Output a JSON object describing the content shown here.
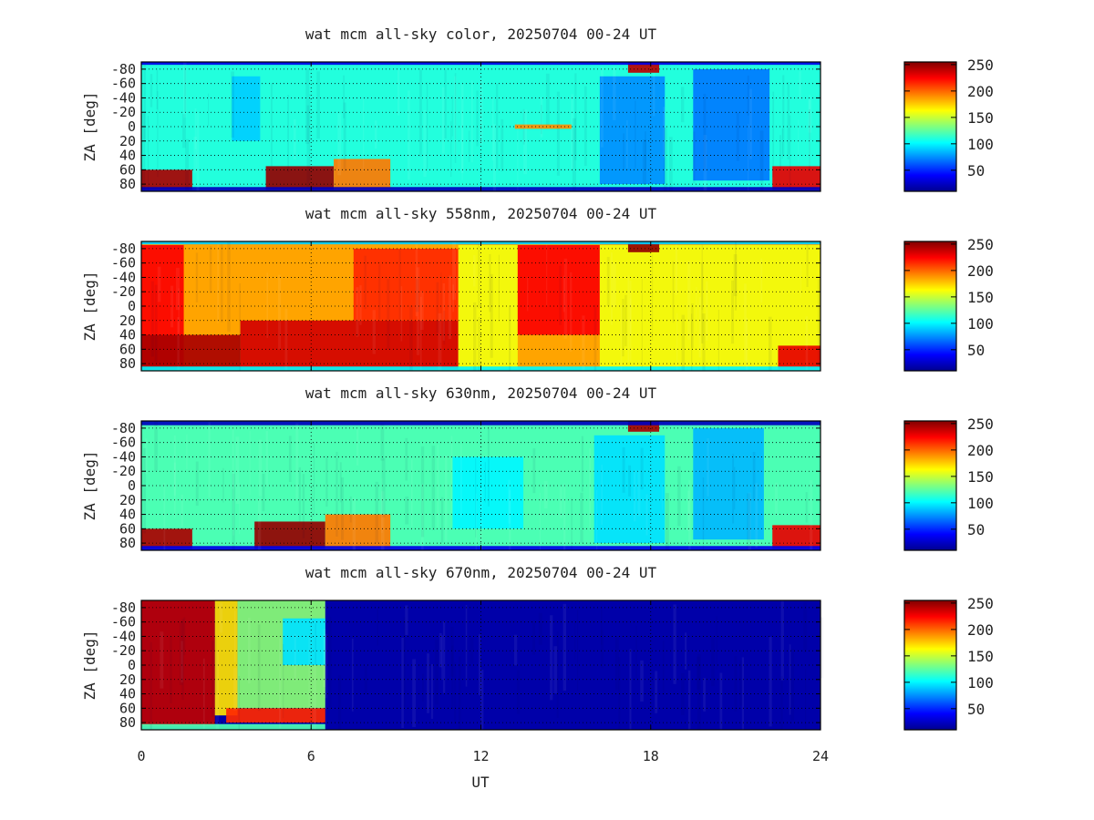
{
  "chart_data": [
    {
      "type": "heatmap",
      "title": "wat mcm all-sky color, 20250704 00-24 UT",
      "xlabel": "",
      "ylabel": "ZA [deg]",
      "x_ticks": [],
      "y_ticks": [
        "-80",
        "-60",
        "-40",
        "-20",
        "0",
        "20",
        "40",
        "60",
        "80"
      ],
      "xlim": [
        0,
        24
      ],
      "ylim": [
        -90,
        90
      ],
      "colorbar": {
        "ticks": [
          "250",
          "200",
          "150",
          "100",
          "50"
        ],
        "range": [
          10,
          255
        ]
      },
      "grid": true,
      "base_value": 110,
      "features": [
        {
          "t": [
            0,
            1.8
          ],
          "za": [
            60,
            88
          ],
          "value": 245
        },
        {
          "t": [
            4.4,
            6.8
          ],
          "za": [
            55,
            88
          ],
          "value": 250
        },
        {
          "t": [
            6.8,
            8.8
          ],
          "za": [
            45,
            88
          ],
          "value": 195
        },
        {
          "t": [
            3.2,
            4.2
          ],
          "za": [
            -70,
            20
          ],
          "value": 90
        },
        {
          "t": [
            16.2,
            18.5
          ],
          "za": [
            -70,
            80
          ],
          "value": 75
        },
        {
          "t": [
            19.5,
            22.2
          ],
          "za": [
            -80,
            75
          ],
          "value": 70
        },
        {
          "t": [
            22.3,
            24
          ],
          "za": [
            55,
            88
          ],
          "value": 230
        },
        {
          "t": [
            17.2,
            18.3
          ],
          "za": [
            -90,
            -75
          ],
          "value": 240
        },
        {
          "t": [
            13.2,
            15.2
          ],
          "za": [
            -3,
            3
          ],
          "value": 190
        },
        {
          "t": [
            0,
            24
          ],
          "za": [
            -90,
            -86
          ],
          "value": 35
        },
        {
          "t": [
            0,
            24
          ],
          "za": [
            84,
            90
          ],
          "value": 25
        }
      ]
    },
    {
      "type": "heatmap",
      "title": "wat mcm all-sky 558nm, 20250704 00-24 UT",
      "xlabel": "",
      "ylabel": "ZA [deg]",
      "x_ticks": [],
      "y_ticks": [
        "-80",
        "-60",
        "-40",
        "-20",
        "0",
        "20",
        "40",
        "60",
        "80"
      ],
      "xlim": [
        0,
        24
      ],
      "ylim": [
        -90,
        90
      ],
      "colorbar": {
        "ticks": [
          "250",
          "200",
          "150",
          "100",
          "50"
        ],
        "range": [
          10,
          255
        ]
      },
      "grid": true,
      "base_value": 185,
      "features": [
        {
          "t": [
            0,
            1.5
          ],
          "za": [
            -85,
            88
          ],
          "value": 225
        },
        {
          "t": [
            0,
            3.5
          ],
          "za": [
            40,
            88
          ],
          "value": 245
        },
        {
          "t": [
            3.5,
            11.2
          ],
          "za": [
            20,
            88
          ],
          "value": 235
        },
        {
          "t": [
            7.5,
            11.2
          ],
          "za": [
            -80,
            20
          ],
          "value": 215
        },
        {
          "t": [
            11.2,
            13.3
          ],
          "za": [
            -85,
            88
          ],
          "value": 160
        },
        {
          "t": [
            13.3,
            16.2
          ],
          "za": [
            -85,
            40
          ],
          "value": 225
        },
        {
          "t": [
            16.2,
            24
          ],
          "za": [
            -85,
            88
          ],
          "value": 160
        },
        {
          "t": [
            22.5,
            24
          ],
          "za": [
            55,
            88
          ],
          "value": 230
        },
        {
          "t": [
            17.2,
            18.3
          ],
          "za": [
            -90,
            -75
          ],
          "value": 250
        },
        {
          "t": [
            0,
            24
          ],
          "za": [
            -90,
            -86
          ],
          "value": 90
        },
        {
          "t": [
            0,
            24
          ],
          "za": [
            84,
            90
          ],
          "value": 100
        }
      ]
    },
    {
      "type": "heatmap",
      "title": "wat mcm all-sky 630nm, 20250704 00-24 UT",
      "xlabel": "",
      "ylabel": "ZA [deg]",
      "x_ticks": [],
      "y_ticks": [
        "-80",
        "-60",
        "-40",
        "-20",
        "0",
        "20",
        "40",
        "60",
        "80"
      ],
      "xlim": [
        0,
        24
      ],
      "ylim": [
        -90,
        90
      ],
      "colorbar": {
        "ticks": [
          "250",
          "200",
          "150",
          "100",
          "50"
        ],
        "range": [
          10,
          255
        ]
      },
      "grid": true,
      "base_value": 120,
      "features": [
        {
          "t": [
            0,
            1.8
          ],
          "za": [
            60,
            88
          ],
          "value": 245
        },
        {
          "t": [
            4.0,
            6.5
          ],
          "za": [
            50,
            88
          ],
          "value": 250
        },
        {
          "t": [
            6.5,
            8.8
          ],
          "za": [
            40,
            88
          ],
          "value": 195
        },
        {
          "t": [
            11.0,
            13.5
          ],
          "za": [
            -40,
            60
          ],
          "value": 100
        },
        {
          "t": [
            16.0,
            18.5
          ],
          "za": [
            -70,
            80
          ],
          "value": 95
        },
        {
          "t": [
            19.5,
            22.0
          ],
          "za": [
            -80,
            75
          ],
          "value": 85
        },
        {
          "t": [
            22.3,
            24
          ],
          "za": [
            55,
            88
          ],
          "value": 230
        },
        {
          "t": [
            17.2,
            18.3
          ],
          "za": [
            -90,
            -75
          ],
          "value": 245
        },
        {
          "t": [
            0,
            24
          ],
          "za": [
            -90,
            -84
          ],
          "value": 25
        },
        {
          "t": [
            0,
            24
          ],
          "za": [
            84,
            90
          ],
          "value": 35
        }
      ]
    },
    {
      "type": "heatmap",
      "title": "wat mcm all-sky 670nm, 20250704 00-24 UT",
      "xlabel": "UT",
      "ylabel": "ZA [deg]",
      "x_ticks": [
        "0",
        "6",
        "12",
        "18",
        "24"
      ],
      "y_ticks": [
        "-80",
        "-60",
        "-40",
        "-20",
        "0",
        "20",
        "40",
        "60",
        "80"
      ],
      "xlim": [
        0,
        24
      ],
      "ylim": [
        -90,
        90
      ],
      "colorbar": {
        "ticks": [
          "250",
          "200",
          "150",
          "100",
          "50"
        ],
        "range": [
          10,
          255
        ]
      },
      "grid": true,
      "base_value": 20,
      "features": [
        {
          "t": [
            0,
            2.6
          ],
          "za": [
            -90,
            85
          ],
          "value": 240
        },
        {
          "t": [
            2.6,
            3.4
          ],
          "za": [
            -90,
            70
          ],
          "value": 170
        },
        {
          "t": [
            3.4,
            6.5
          ],
          "za": [
            -90,
            60
          ],
          "value": 135
        },
        {
          "t": [
            5.0,
            6.5
          ],
          "za": [
            -65,
            0
          ],
          "value": 95
        },
        {
          "t": [
            3.0,
            6.5
          ],
          "za": [
            60,
            80
          ],
          "value": 215
        },
        {
          "t": [
            0,
            6.5
          ],
          "za": [
            82,
            90
          ],
          "value": 120
        }
      ]
    }
  ]
}
